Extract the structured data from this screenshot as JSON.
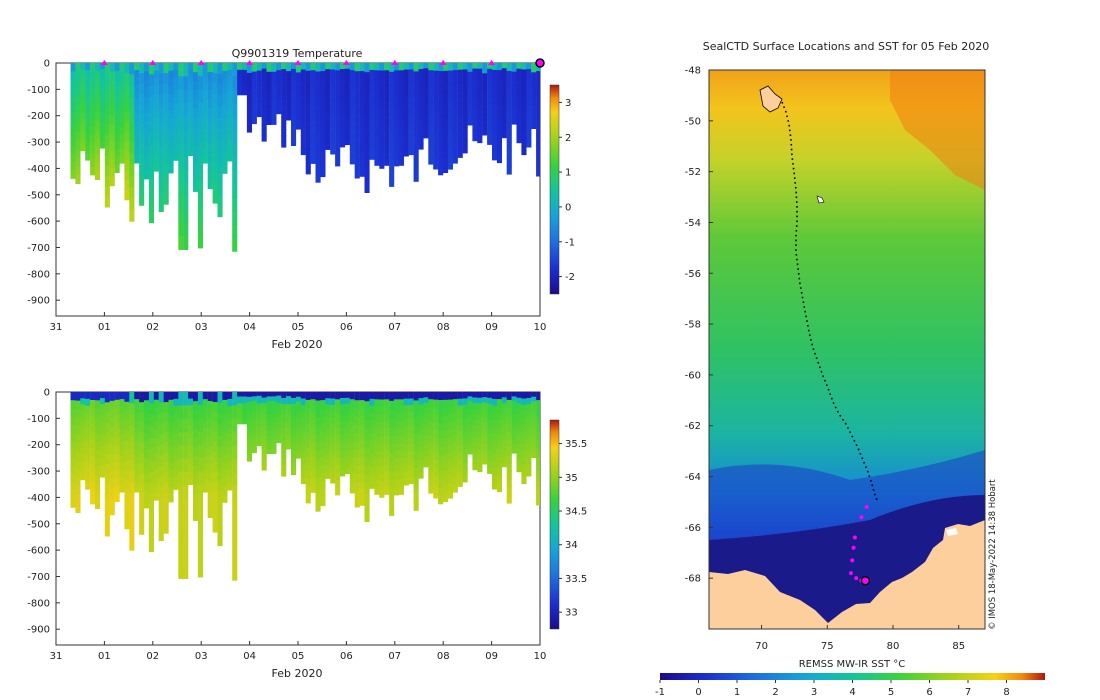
{
  "chart_data": [
    {
      "type": "heatmap",
      "title": "Q9901319  Temperature",
      "xlabel": "Feb 2020",
      "x_ticks": [
        "31",
        "01",
        "02",
        "03",
        "04",
        "05",
        "06",
        "07",
        "08",
        "09",
        "10"
      ],
      "xlim": [
        0,
        10
      ],
      "ylim": [
        -960,
        0
      ],
      "y_ticks": [
        0,
        -100,
        -200,
        -300,
        -400,
        -500,
        -600,
        -700,
        -800,
        -900
      ],
      "colorbar": {
        "range": [
          -2.5,
          3.5
        ],
        "ticks": [
          -2,
          -1,
          0,
          1,
          2,
          3
        ]
      },
      "profile_markers_days": [
        1,
        2,
        3,
        4,
        5,
        6,
        7,
        8,
        9
      ],
      "current_marker_day": 10,
      "marker_color": "#ff00ff",
      "colormap": "parula"
    },
    {
      "type": "heatmap",
      "title": "",
      "xlabel": "Feb 2020",
      "x_ticks": [
        "31",
        "01",
        "02",
        "03",
        "04",
        "05",
        "06",
        "07",
        "08",
        "09",
        "10"
      ],
      "xlim": [
        0,
        10
      ],
      "ylim": [
        -960,
        0
      ],
      "y_ticks": [
        0,
        -100,
        -200,
        -300,
        -400,
        -500,
        -600,
        -700,
        -800,
        -900
      ],
      "colorbar": {
        "range": [
          32.75,
          35.85
        ],
        "ticks": [
          33,
          33.5,
          34,
          34.5,
          35,
          35.5
        ]
      },
      "colormap": "parula"
    },
    {
      "type": "map",
      "title": "SealCTD Surface Locations and SST for 05 Feb 2020",
      "xlabel": "",
      "x_ticks": [
        70,
        75,
        80,
        85
      ],
      "xlim": [
        66,
        87
      ],
      "y_ticks": [
        -48,
        -50,
        -52,
        -54,
        -56,
        -58,
        -60,
        -62,
        -64,
        -66,
        -68
      ],
      "ylim": [
        -70,
        -48
      ],
      "land_color": "#fccf9c",
      "credit": "© IMOS 18-May-2022 14:38 Hobart",
      "colorbar": {
        "label": "REMSS MW-IR SST °C",
        "range": [
          -1,
          9
        ],
        "ticks": [
          -1,
          0,
          1,
          2,
          3,
          4,
          5,
          6,
          7,
          8
        ]
      },
      "track_color": "#000000",
      "recent_track_color": "#ff00ff"
    }
  ]
}
